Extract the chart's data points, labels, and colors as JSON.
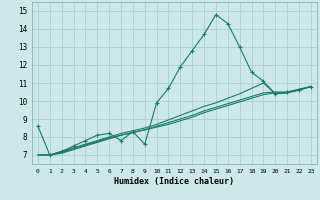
{
  "title": "",
  "xlabel": "Humidex (Indice chaleur)",
  "ylabel": "",
  "bg_color": "#cce8e8",
  "line_color": "#1a7a6e",
  "grid_color": "#aacfcf",
  "xlim": [
    -0.5,
    23.5
  ],
  "ylim": [
    6.5,
    15.5
  ],
  "xticks": [
    0,
    1,
    2,
    3,
    4,
    5,
    6,
    7,
    8,
    9,
    10,
    11,
    12,
    13,
    14,
    15,
    16,
    17,
    18,
    19,
    20,
    21,
    22,
    23
  ],
  "yticks": [
    7,
    8,
    9,
    10,
    11,
    12,
    13,
    14,
    15
  ],
  "series": [
    {
      "x": [
        0,
        1,
        2,
        3,
        4,
        5,
        6,
        7,
        8,
        9,
        10,
        11,
        12,
        13,
        14,
        15,
        16,
        17,
        18,
        19,
        20,
        21,
        22,
        23
      ],
      "y": [
        8.6,
        7.0,
        7.2,
        7.5,
        7.8,
        8.1,
        8.2,
        7.8,
        8.3,
        7.6,
        9.9,
        10.7,
        11.9,
        12.8,
        13.7,
        14.8,
        14.3,
        13.0,
        11.6,
        11.1,
        10.4,
        10.5,
        10.6,
        10.8
      ],
      "marker": "+"
    },
    {
      "x": [
        0,
        1,
        2,
        3,
        4,
        5,
        6,
        7,
        8,
        9,
        10,
        11,
        12,
        13,
        14,
        15,
        16,
        17,
        18,
        19,
        20,
        21,
        22,
        23
      ],
      "y": [
        7.0,
        7.0,
        7.15,
        7.35,
        7.55,
        7.75,
        7.95,
        8.1,
        8.25,
        8.4,
        8.6,
        8.8,
        9.0,
        9.2,
        9.45,
        9.65,
        9.85,
        10.05,
        10.25,
        10.45,
        10.5,
        10.5,
        10.65,
        10.8
      ],
      "marker": null
    },
    {
      "x": [
        0,
        1,
        2,
        3,
        4,
        5,
        6,
        7,
        8,
        9,
        10,
        11,
        12,
        13,
        14,
        15,
        16,
        17,
        18,
        19,
        20,
        21,
        22,
        23
      ],
      "y": [
        7.0,
        7.0,
        7.2,
        7.4,
        7.6,
        7.8,
        8.0,
        8.2,
        8.35,
        8.5,
        8.7,
        8.95,
        9.2,
        9.45,
        9.7,
        9.9,
        10.15,
        10.4,
        10.7,
        11.0,
        10.4,
        10.45,
        10.65,
        10.8
      ],
      "marker": null
    },
    {
      "x": [
        0,
        1,
        2,
        3,
        4,
        5,
        6,
        7,
        8,
        9,
        10,
        11,
        12,
        13,
        14,
        15,
        16,
        17,
        18,
        19,
        20,
        21,
        22,
        23
      ],
      "y": [
        7.0,
        7.0,
        7.1,
        7.3,
        7.5,
        7.7,
        7.9,
        8.1,
        8.25,
        8.4,
        8.55,
        8.7,
        8.9,
        9.1,
        9.35,
        9.55,
        9.75,
        9.95,
        10.15,
        10.35,
        10.45,
        10.45,
        10.6,
        10.8
      ],
      "marker": null
    }
  ]
}
